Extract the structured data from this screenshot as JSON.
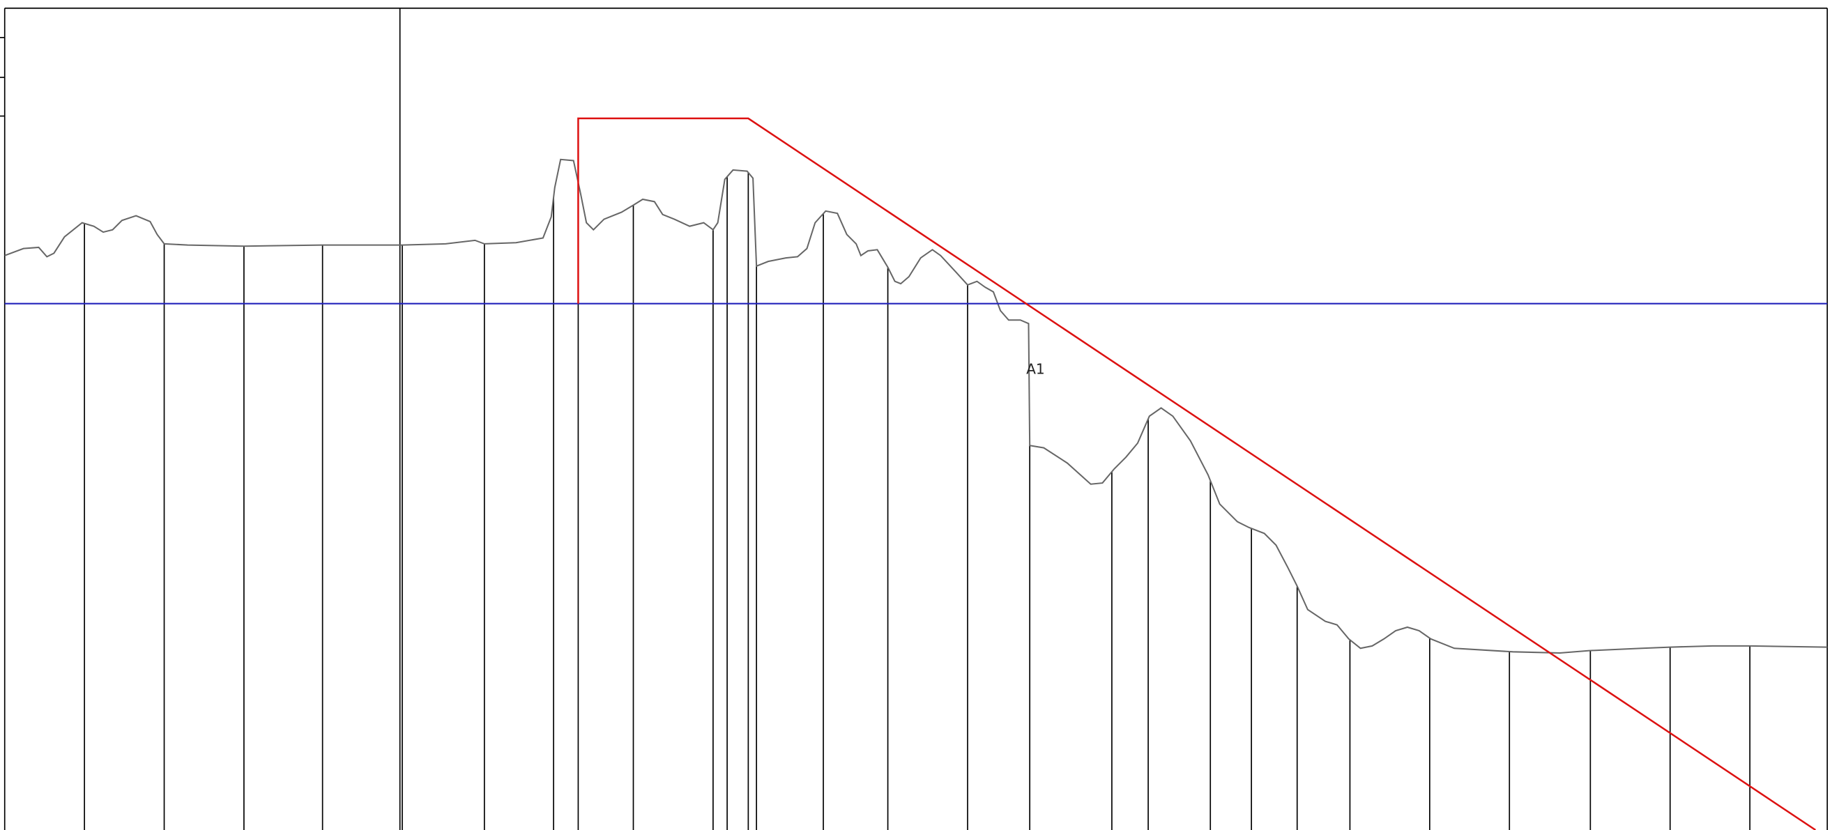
{
  "profile_label": "A1"
}
